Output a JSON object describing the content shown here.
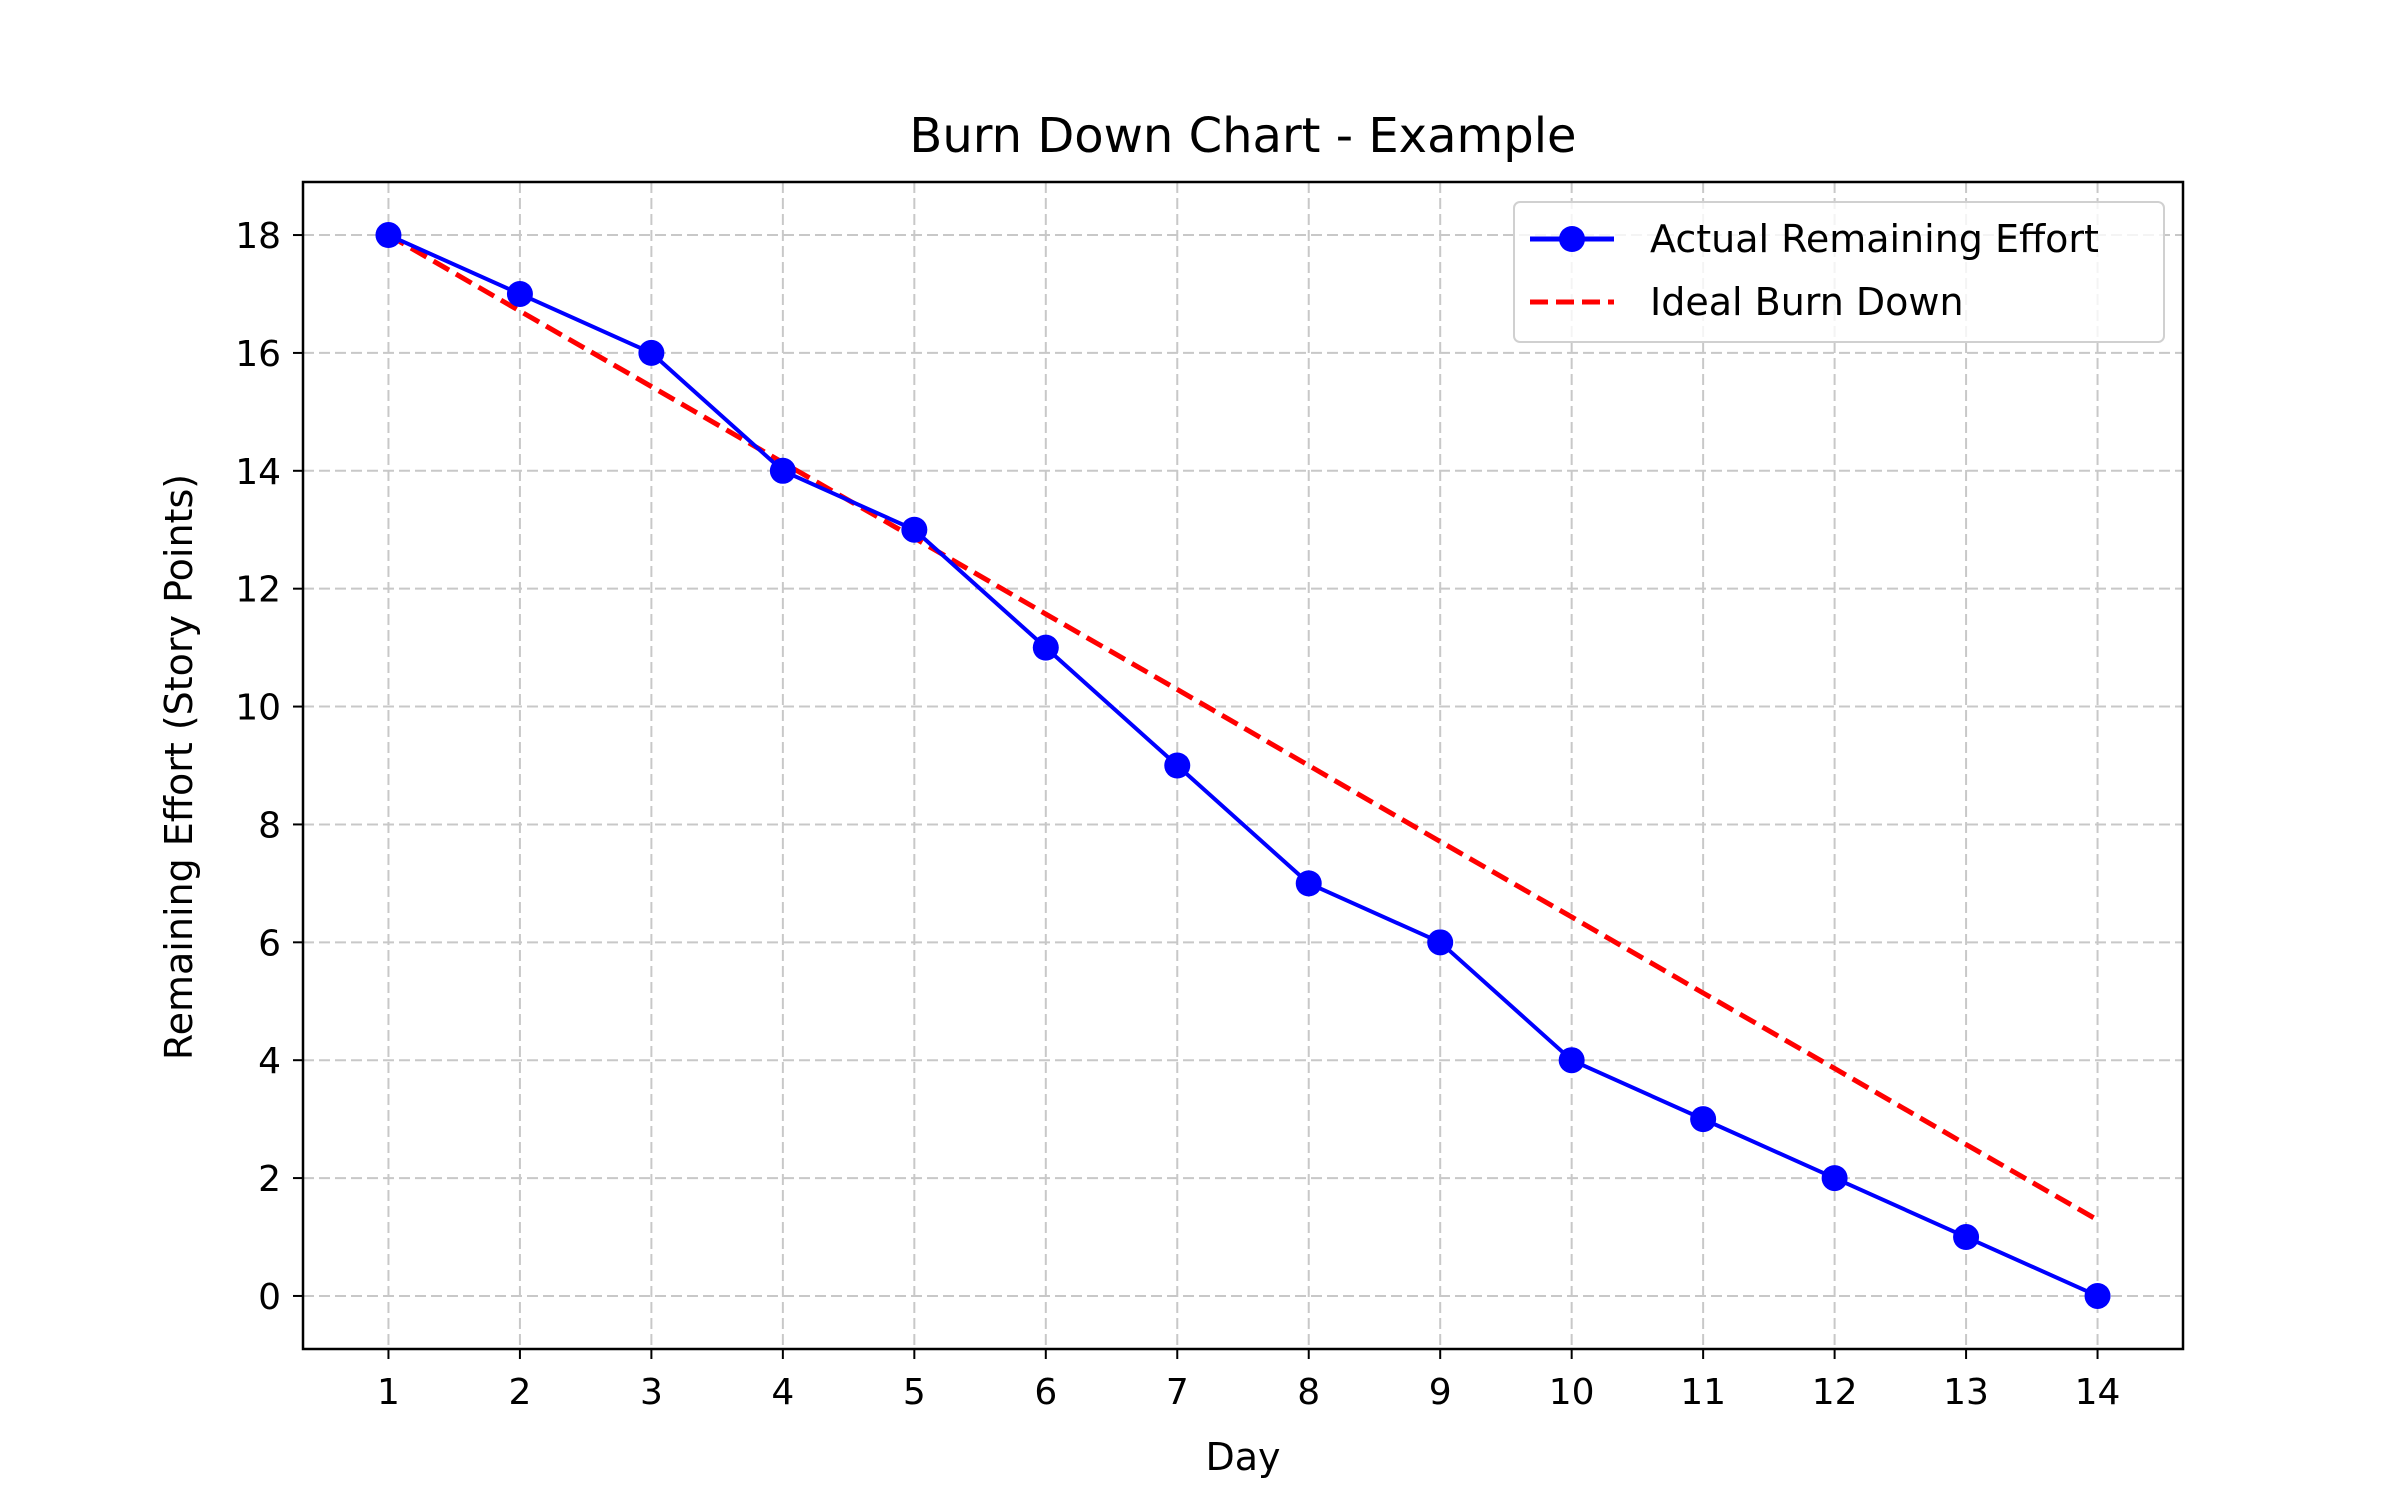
{
  "chart_data": {
    "type": "line",
    "title": "Burn Down Chart - Example",
    "xlabel": "Day",
    "ylabel": "Remaining Effort (Story Points)",
    "x": [
      1,
      2,
      3,
      4,
      5,
      6,
      7,
      8,
      9,
      10,
      11,
      12,
      13,
      14
    ],
    "xticks": [
      1,
      2,
      3,
      4,
      5,
      6,
      7,
      8,
      9,
      10,
      11,
      12,
      13,
      14
    ],
    "yticks": [
      0,
      2,
      4,
      6,
      8,
      10,
      12,
      14,
      16,
      18
    ],
    "xlim": [
      0.35,
      14.65
    ],
    "ylim": [
      -0.9,
      18.9
    ],
    "grid": true,
    "legend_position": "top-right",
    "series": [
      {
        "name": "Actual Remaining Effort",
        "style": "solid-with-circle-markers",
        "color": "#0000ff",
        "values": [
          18,
          17,
          16,
          14,
          13,
          11,
          9,
          7,
          6,
          4,
          3,
          2,
          1,
          0
        ]
      },
      {
        "name": "Ideal Burn Down",
        "style": "dashed",
        "color": "#ff0000",
        "values": [
          18.0,
          16.71,
          15.43,
          14.14,
          12.86,
          11.57,
          10.29,
          9.0,
          7.71,
          6.43,
          5.14,
          3.86,
          2.57,
          1.29
        ]
      }
    ]
  }
}
